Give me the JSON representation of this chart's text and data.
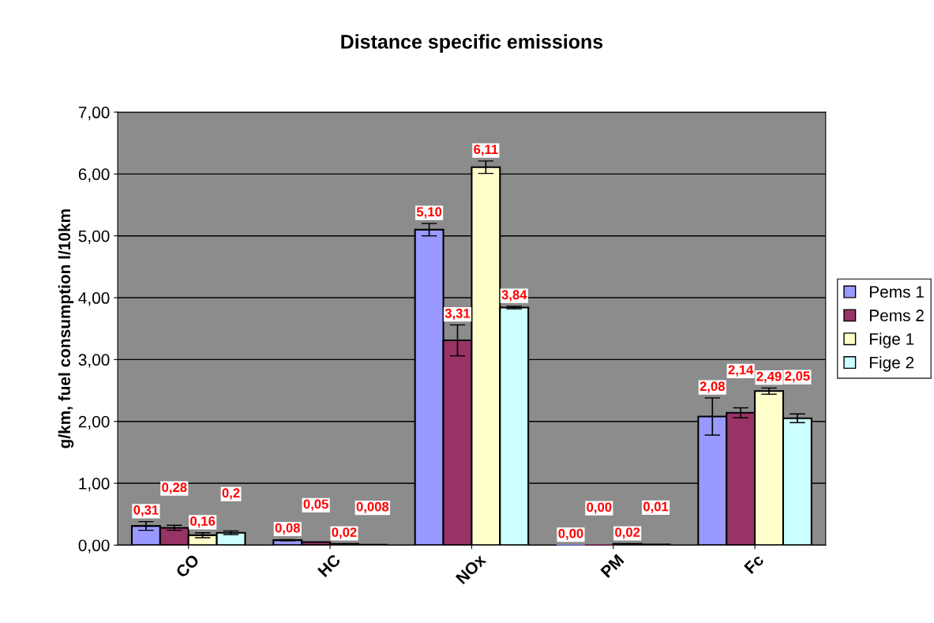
{
  "chart_data": {
    "type": "bar",
    "title": "Distance specific emissions",
    "ylabel": "g/km, fuel consumption l/10km",
    "categories": [
      "CO",
      "HC",
      "NOx",
      "PM",
      "Fc"
    ],
    "series": [
      {
        "name": "Pems 1",
        "color": "#9999ff",
        "values": [
          0.31,
          0.08,
          5.1,
          0.0,
          2.08
        ],
        "errors": [
          0.07,
          0.01,
          0.1,
          null,
          0.3
        ],
        "value_labels": [
          "0,31",
          "0,08",
          "5,10",
          "0,00",
          "2,08"
        ]
      },
      {
        "name": "Pems 2",
        "color": "#993366",
        "values": [
          0.28,
          0.05,
          3.31,
          0.0,
          2.14
        ],
        "errors": [
          0.04,
          null,
          0.25,
          null,
          0.08
        ],
        "value_labels": [
          "0,28",
          "0,05",
          "3,31",
          "0,00",
          "2,14"
        ]
      },
      {
        "name": "Fige 1",
        "color": "#ffffcc",
        "values": [
          0.16,
          0.02,
          6.11,
          0.02,
          2.49
        ],
        "errors": [
          0.04,
          null,
          0.1,
          null,
          0.05
        ],
        "value_labels": [
          "0,16",
          "0,02",
          "6,11",
          "0,02",
          "2,49"
        ]
      },
      {
        "name": "Fige 2",
        "color": "#ccffff",
        "values": [
          0.2,
          0.008,
          3.84,
          0.01,
          2.05
        ],
        "errors": [
          0.03,
          null,
          0.02,
          null,
          0.07
        ],
        "value_labels": [
          "0,2",
          "0,008",
          "3,84",
          "0,01",
          "2,05"
        ]
      }
    ],
    "ylim": [
      0,
      7
    ],
    "yticks": [
      {
        "value": 0,
        "label": "0,00"
      },
      {
        "value": 1,
        "label": "1,00"
      },
      {
        "value": 2,
        "label": "2,00"
      },
      {
        "value": 3,
        "label": "3,00"
      },
      {
        "value": 4,
        "label": "4,00"
      },
      {
        "value": 5,
        "label": "5,00"
      },
      {
        "value": 6,
        "label": "6,00"
      },
      {
        "value": 7,
        "label": "7,00"
      }
    ],
    "grid": "y",
    "legend": "right"
  }
}
